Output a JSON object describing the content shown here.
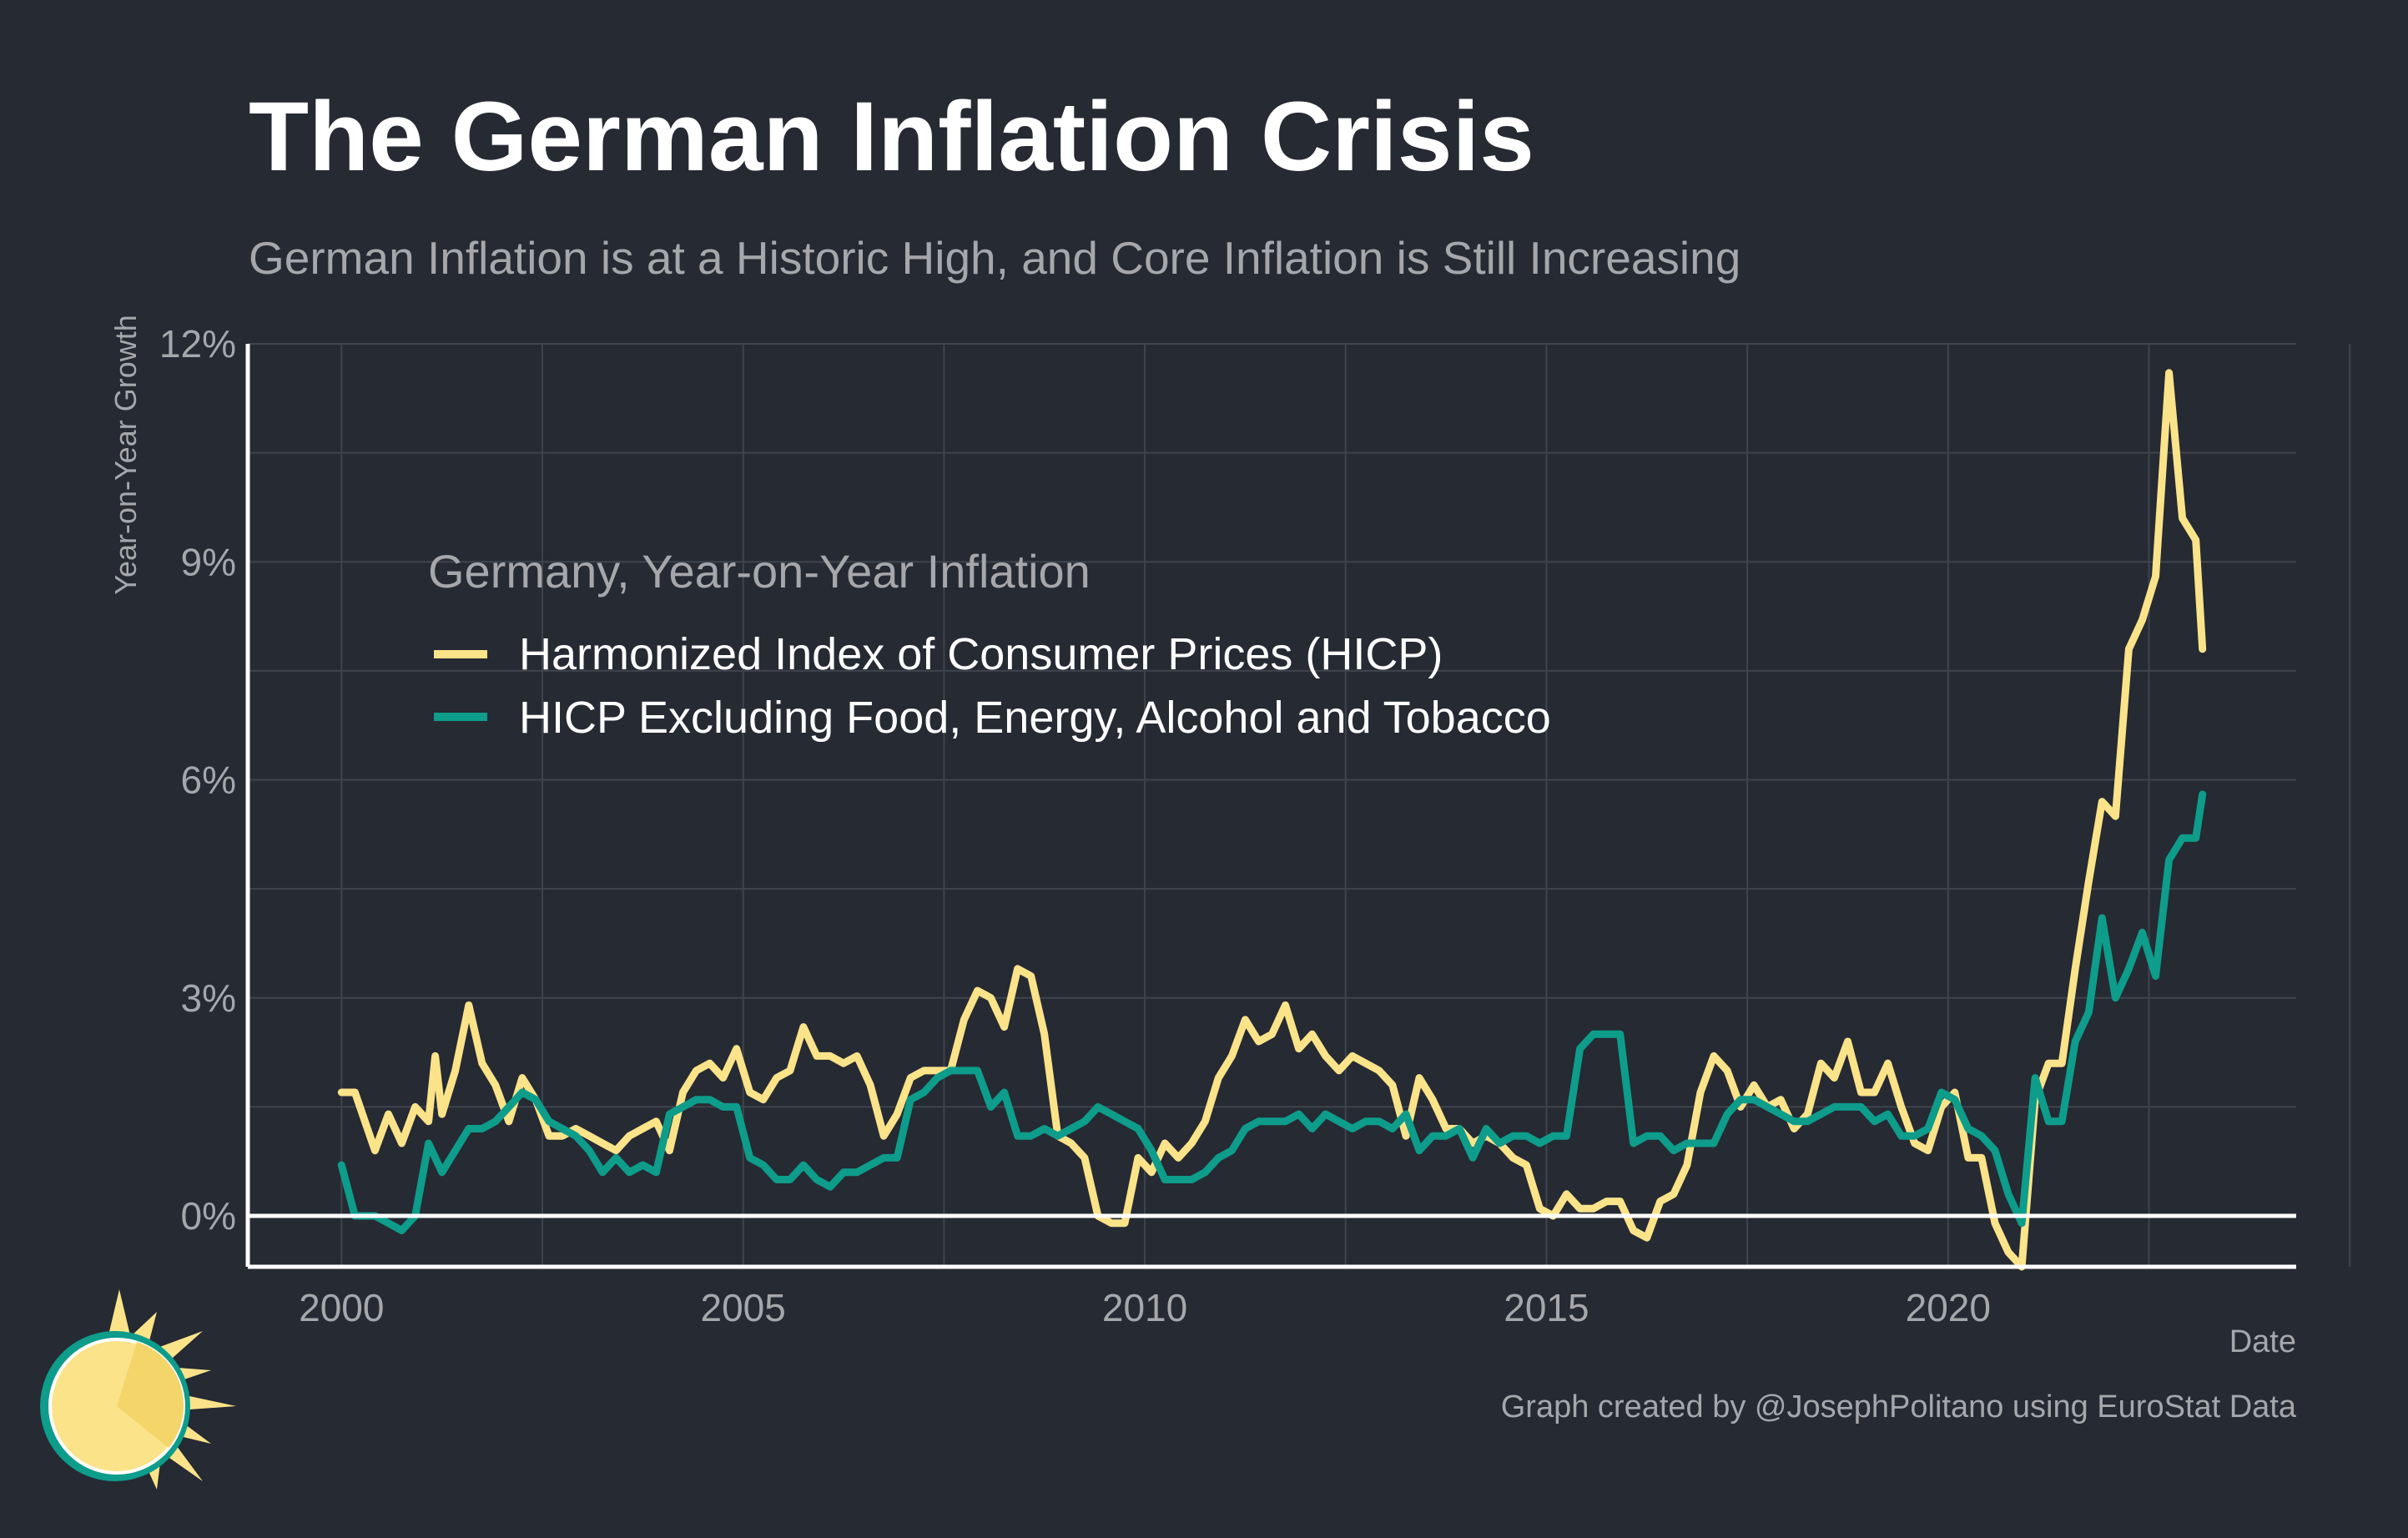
{
  "title": "The German Inflation Crisis",
  "subtitle": "German Inflation is at a Historic High, and Core Inflation is Still Increasing",
  "credit": "Graph created by @JosephPolitano using EuroStat Data",
  "colors": {
    "background": "#252a33",
    "hicp": "#fbe38a",
    "core": "#0e9c8b",
    "grid": "#3f444d",
    "axis_text": "#a6a7ab",
    "zero_line": "#ffffff"
  },
  "chart_data": {
    "type": "line",
    "xlabel": "Date",
    "ylabel": "Year-on-Year Growth",
    "x_ticks": [
      "2000",
      "2005",
      "2010",
      "2015",
      "2020"
    ],
    "y_ticks": [
      "0%",
      "3%",
      "6%",
      "9%",
      "12%"
    ],
    "xlim": [
      "1998-11-01",
      "2024-05-01"
    ],
    "ylim": [
      -0.7,
      12
    ],
    "grid": true,
    "legend": {
      "title": "Germany, Year-on-Year Inflation",
      "position": "top-left inside"
    },
    "series": [
      {
        "name": "Harmonized Index of Consumer Prices (HICP)",
        "color": "#fbe38a",
        "points": [
          [
            "2000-01",
            1.7
          ],
          [
            "2000-03",
            1.7
          ],
          [
            "2000-06",
            0.9
          ],
          [
            "2000-08",
            1.4
          ],
          [
            "2000-10",
            1.0
          ],
          [
            "2000-12",
            1.5
          ],
          [
            "2001-02",
            1.3
          ],
          [
            "2001-03",
            2.2
          ],
          [
            "2001-04",
            1.4
          ],
          [
            "2001-06",
            2.0
          ],
          [
            "2001-08",
            2.9
          ],
          [
            "2001-10",
            2.1
          ],
          [
            "2001-12",
            1.8
          ],
          [
            "2002-02",
            1.3
          ],
          [
            "2002-04",
            1.9
          ],
          [
            "2002-06",
            1.6
          ],
          [
            "2002-08",
            1.1
          ],
          [
            "2002-10",
            1.1
          ],
          [
            "2002-12",
            1.2
          ],
          [
            "2003-02",
            1.1
          ],
          [
            "2003-04",
            1.0
          ],
          [
            "2003-06",
            0.9
          ],
          [
            "2003-08",
            1.1
          ],
          [
            "2003-10",
            1.2
          ],
          [
            "2003-12",
            1.3
          ],
          [
            "2004-02",
            0.9
          ],
          [
            "2004-04",
            1.7
          ],
          [
            "2004-06",
            2.0
          ],
          [
            "2004-08",
            2.1
          ],
          [
            "2004-10",
            1.9
          ],
          [
            "2004-12",
            2.3
          ],
          [
            "2005-02",
            1.7
          ],
          [
            "2005-04",
            1.6
          ],
          [
            "2005-06",
            1.9
          ],
          [
            "2005-08",
            2.0
          ],
          [
            "2005-10",
            2.6
          ],
          [
            "2005-12",
            2.2
          ],
          [
            "2006-02",
            2.2
          ],
          [
            "2006-04",
            2.1
          ],
          [
            "2006-06",
            2.2
          ],
          [
            "2006-08",
            1.8
          ],
          [
            "2006-10",
            1.1
          ],
          [
            "2006-12",
            1.4
          ],
          [
            "2007-02",
            1.9
          ],
          [
            "2007-04",
            2.0
          ],
          [
            "2007-06",
            2.0
          ],
          [
            "2007-08",
            2.0
          ],
          [
            "2007-10",
            2.7
          ],
          [
            "2007-12",
            3.1
          ],
          [
            "2008-02",
            3.0
          ],
          [
            "2008-04",
            2.6
          ],
          [
            "2008-06",
            3.4
          ],
          [
            "2008-08",
            3.3
          ],
          [
            "2008-10",
            2.5
          ],
          [
            "2008-12",
            1.1
          ],
          [
            "2009-02",
            1.0
          ],
          [
            "2009-04",
            0.8
          ],
          [
            "2009-06",
            0.0
          ],
          [
            "2009-08",
            -0.1
          ],
          [
            "2009-10",
            -0.1
          ],
          [
            "2009-12",
            0.8
          ],
          [
            "2010-02",
            0.6
          ],
          [
            "2010-04",
            1.0
          ],
          [
            "2010-06",
            0.8
          ],
          [
            "2010-08",
            1.0
          ],
          [
            "2010-10",
            1.3
          ],
          [
            "2010-12",
            1.9
          ],
          [
            "2011-02",
            2.2
          ],
          [
            "2011-04",
            2.7
          ],
          [
            "2011-06",
            2.4
          ],
          [
            "2011-08",
            2.5
          ],
          [
            "2011-10",
            2.9
          ],
          [
            "2011-12",
            2.3
          ],
          [
            "2012-02",
            2.5
          ],
          [
            "2012-04",
            2.2
          ],
          [
            "2012-06",
            2.0
          ],
          [
            "2012-08",
            2.2
          ],
          [
            "2012-10",
            2.1
          ],
          [
            "2012-12",
            2.0
          ],
          [
            "2013-02",
            1.8
          ],
          [
            "2013-04",
            1.1
          ],
          [
            "2013-06",
            1.9
          ],
          [
            "2013-08",
            1.6
          ],
          [
            "2013-10",
            1.2
          ],
          [
            "2013-12",
            1.2
          ],
          [
            "2014-02",
            1.0
          ],
          [
            "2014-04",
            1.1
          ],
          [
            "2014-06",
            1.0
          ],
          [
            "2014-08",
            0.8
          ],
          [
            "2014-10",
            0.7
          ],
          [
            "2014-12",
            0.1
          ],
          [
            "2015-02",
            0.0
          ],
          [
            "2015-04",
            0.3
          ],
          [
            "2015-06",
            0.1
          ],
          [
            "2015-08",
            0.1
          ],
          [
            "2015-10",
            0.2
          ],
          [
            "2015-12",
            0.2
          ],
          [
            "2016-02",
            -0.2
          ],
          [
            "2016-04",
            -0.3
          ],
          [
            "2016-06",
            0.2
          ],
          [
            "2016-08",
            0.3
          ],
          [
            "2016-10",
            0.7
          ],
          [
            "2016-12",
            1.7
          ],
          [
            "2017-02",
            2.2
          ],
          [
            "2017-04",
            2.0
          ],
          [
            "2017-06",
            1.5
          ],
          [
            "2017-08",
            1.8
          ],
          [
            "2017-10",
            1.5
          ],
          [
            "2017-12",
            1.6
          ],
          [
            "2018-02",
            1.2
          ],
          [
            "2018-04",
            1.4
          ],
          [
            "2018-06",
            2.1
          ],
          [
            "2018-08",
            1.9
          ],
          [
            "2018-10",
            2.4
          ],
          [
            "2018-12",
            1.7
          ],
          [
            "2019-02",
            1.7
          ],
          [
            "2019-04",
            2.1
          ],
          [
            "2019-06",
            1.5
          ],
          [
            "2019-08",
            1.0
          ],
          [
            "2019-10",
            0.9
          ],
          [
            "2019-12",
            1.5
          ],
          [
            "2020-02",
            1.7
          ],
          [
            "2020-04",
            0.8
          ],
          [
            "2020-06",
            0.8
          ],
          [
            "2020-08",
            -0.1
          ],
          [
            "2020-10",
            -0.5
          ],
          [
            "2020-12",
            -0.7
          ],
          [
            "2021-02",
            1.6
          ],
          [
            "2021-04",
            2.1
          ],
          [
            "2021-06",
            2.1
          ],
          [
            "2021-08",
            3.4
          ],
          [
            "2021-10",
            4.6
          ],
          [
            "2021-12",
            5.7
          ],
          [
            "2022-02",
            5.5
          ],
          [
            "2022-04",
            7.8
          ],
          [
            "2022-06",
            8.2
          ],
          [
            "2022-08",
            8.8
          ],
          [
            "2022-10",
            11.6
          ],
          [
            "2022-12",
            9.6
          ],
          [
            "2023-02",
            9.3
          ],
          [
            "2023-03",
            7.8
          ]
        ]
      },
      {
        "name": "HICP Excluding Food, Energy, Alcohol and Tobacco",
        "color": "#0e9c8b",
        "points": [
          [
            "2000-01",
            0.7
          ],
          [
            "2000-03",
            0.0
          ],
          [
            "2000-06",
            0.0
          ],
          [
            "2000-08",
            -0.1
          ],
          [
            "2000-10",
            -0.2
          ],
          [
            "2000-12",
            0.0
          ],
          [
            "2001-02",
            1.0
          ],
          [
            "2001-04",
            0.6
          ],
          [
            "2001-06",
            0.9
          ],
          [
            "2001-08",
            1.2
          ],
          [
            "2001-10",
            1.2
          ],
          [
            "2001-12",
            1.3
          ],
          [
            "2002-02",
            1.5
          ],
          [
            "2002-04",
            1.7
          ],
          [
            "2002-06",
            1.6
          ],
          [
            "2002-08",
            1.3
          ],
          [
            "2002-10",
            1.2
          ],
          [
            "2002-12",
            1.1
          ],
          [
            "2003-02",
            0.9
          ],
          [
            "2003-04",
            0.6
          ],
          [
            "2003-06",
            0.8
          ],
          [
            "2003-08",
            0.6
          ],
          [
            "2003-10",
            0.7
          ],
          [
            "2003-12",
            0.6
          ],
          [
            "2004-02",
            1.4
          ],
          [
            "2004-04",
            1.5
          ],
          [
            "2004-06",
            1.6
          ],
          [
            "2004-08",
            1.6
          ],
          [
            "2004-10",
            1.5
          ],
          [
            "2004-12",
            1.5
          ],
          [
            "2005-02",
            0.8
          ],
          [
            "2005-04",
            0.7
          ],
          [
            "2005-06",
            0.5
          ],
          [
            "2005-08",
            0.5
          ],
          [
            "2005-10",
            0.7
          ],
          [
            "2005-12",
            0.5
          ],
          [
            "2006-02",
            0.4
          ],
          [
            "2006-04",
            0.6
          ],
          [
            "2006-06",
            0.6
          ],
          [
            "2006-08",
            0.7
          ],
          [
            "2006-10",
            0.8
          ],
          [
            "2006-12",
            0.8
          ],
          [
            "2007-02",
            1.6
          ],
          [
            "2007-04",
            1.7
          ],
          [
            "2007-06",
            1.9
          ],
          [
            "2007-08",
            2.0
          ],
          [
            "2007-10",
            2.0
          ],
          [
            "2007-12",
            2.0
          ],
          [
            "2008-02",
            1.5
          ],
          [
            "2008-04",
            1.7
          ],
          [
            "2008-06",
            1.1
          ],
          [
            "2008-08",
            1.1
          ],
          [
            "2008-10",
            1.2
          ],
          [
            "2008-12",
            1.1
          ],
          [
            "2009-02",
            1.2
          ],
          [
            "2009-04",
            1.3
          ],
          [
            "2009-06",
            1.5
          ],
          [
            "2009-08",
            1.4
          ],
          [
            "2009-10",
            1.3
          ],
          [
            "2009-12",
            1.2
          ],
          [
            "2010-02",
            0.9
          ],
          [
            "2010-04",
            0.5
          ],
          [
            "2010-06",
            0.5
          ],
          [
            "2010-08",
            0.5
          ],
          [
            "2010-10",
            0.6
          ],
          [
            "2010-12",
            0.8
          ],
          [
            "2011-02",
            0.9
          ],
          [
            "2011-04",
            1.2
          ],
          [
            "2011-06",
            1.3
          ],
          [
            "2011-08",
            1.3
          ],
          [
            "2011-10",
            1.3
          ],
          [
            "2011-12",
            1.4
          ],
          [
            "2012-02",
            1.2
          ],
          [
            "2012-04",
            1.4
          ],
          [
            "2012-06",
            1.3
          ],
          [
            "2012-08",
            1.2
          ],
          [
            "2012-10",
            1.3
          ],
          [
            "2012-12",
            1.3
          ],
          [
            "2013-02",
            1.2
          ],
          [
            "2013-04",
            1.4
          ],
          [
            "2013-06",
            0.9
          ],
          [
            "2013-08",
            1.1
          ],
          [
            "2013-10",
            1.1
          ],
          [
            "2013-12",
            1.2
          ],
          [
            "2014-02",
            0.8
          ],
          [
            "2014-04",
            1.2
          ],
          [
            "2014-06",
            1.0
          ],
          [
            "2014-08",
            1.1
          ],
          [
            "2014-10",
            1.1
          ],
          [
            "2014-12",
            1.0
          ],
          [
            "2015-02",
            1.1
          ],
          [
            "2015-04",
            1.1
          ],
          [
            "2015-06",
            2.3
          ],
          [
            "2015-08",
            2.5
          ],
          [
            "2015-10",
            2.5
          ],
          [
            "2015-12",
            2.5
          ],
          [
            "2016-02",
            1.0
          ],
          [
            "2016-04",
            1.1
          ],
          [
            "2016-06",
            1.1
          ],
          [
            "2016-08",
            0.9
          ],
          [
            "2016-10",
            1.0
          ],
          [
            "2016-12",
            1.0
          ],
          [
            "2017-02",
            1.0
          ],
          [
            "2017-04",
            1.4
          ],
          [
            "2017-06",
            1.6
          ],
          [
            "2017-08",
            1.6
          ],
          [
            "2017-10",
            1.5
          ],
          [
            "2017-12",
            1.4
          ],
          [
            "2018-02",
            1.3
          ],
          [
            "2018-04",
            1.3
          ],
          [
            "2018-06",
            1.4
          ],
          [
            "2018-08",
            1.5
          ],
          [
            "2018-10",
            1.5
          ],
          [
            "2018-12",
            1.5
          ],
          [
            "2019-02",
            1.3
          ],
          [
            "2019-04",
            1.4
          ],
          [
            "2019-06",
            1.1
          ],
          [
            "2019-08",
            1.1
          ],
          [
            "2019-10",
            1.2
          ],
          [
            "2019-12",
            1.7
          ],
          [
            "2020-02",
            1.6
          ],
          [
            "2020-04",
            1.2
          ],
          [
            "2020-06",
            1.1
          ],
          [
            "2020-08",
            0.9
          ],
          [
            "2020-10",
            0.3
          ],
          [
            "2020-12",
            -0.1
          ],
          [
            "2021-02",
            1.9
          ],
          [
            "2021-04",
            1.3
          ],
          [
            "2021-06",
            1.3
          ],
          [
            "2021-08",
            2.4
          ],
          [
            "2021-10",
            2.8
          ],
          [
            "2021-12",
            4.1
          ],
          [
            "2022-02",
            3.0
          ],
          [
            "2022-04",
            3.4
          ],
          [
            "2022-06",
            3.9
          ],
          [
            "2022-08",
            3.3
          ],
          [
            "2022-10",
            4.9
          ],
          [
            "2022-12",
            5.2
          ],
          [
            "2023-02",
            5.2
          ],
          [
            "2023-03",
            5.8
          ]
        ]
      }
    ]
  }
}
